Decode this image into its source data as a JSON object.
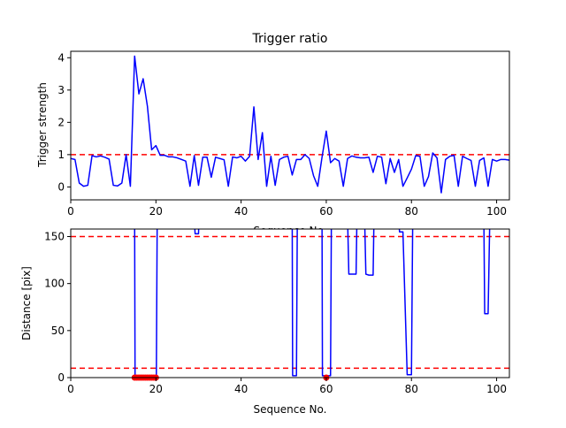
{
  "chart_data": [
    {
      "type": "line",
      "title": "Trigger ratio",
      "xlabel": "Sequence No.",
      "ylabel": "Trigger strength",
      "xlim": [
        0,
        103
      ],
      "ylim": [
        -0.4,
        4.2
      ],
      "xticks": [
        0,
        20,
        40,
        60,
        80,
        100
      ],
      "yticks": [
        0,
        1,
        2,
        3,
        4
      ],
      "grid": false,
      "line_color": "#0000ff",
      "threshold_color": "#ff0000",
      "thresholds": [
        1.0
      ],
      "x": [
        0,
        1,
        2,
        3,
        4,
        5,
        6,
        7,
        8,
        9,
        10,
        11,
        12,
        13,
        14,
        15,
        16,
        17,
        18,
        19,
        20,
        21,
        22,
        23,
        24,
        25,
        26,
        27,
        28,
        29,
        30,
        31,
        32,
        33,
        34,
        35,
        36,
        37,
        38,
        39,
        40,
        41,
        42,
        43,
        44,
        45,
        46,
        47,
        48,
        49,
        50,
        51,
        52,
        53,
        54,
        55,
        56,
        57,
        58,
        59,
        60,
        61,
        62,
        63,
        64,
        65,
        66,
        67,
        68,
        69,
        70,
        71,
        72,
        73,
        74,
        75,
        76,
        77,
        78,
        79,
        80,
        81,
        82,
        83,
        84,
        85,
        86,
        87,
        88,
        89,
        90,
        91,
        92,
        93,
        94,
        95,
        96,
        97,
        98,
        99,
        100,
        101,
        102,
        103
      ],
      "y": [
        0.88,
        0.85,
        0.12,
        0.02,
        0.05,
        0.97,
        0.93,
        0.96,
        0.92,
        0.86,
        0.05,
        0.03,
        0.12,
        1.0,
        0.02,
        4.05,
        2.88,
        3.35,
        2.5,
        1.15,
        1.28,
        0.98,
        0.98,
        0.93,
        0.93,
        0.9,
        0.85,
        0.8,
        0.02,
        0.97,
        0.05,
        0.92,
        0.92,
        0.3,
        0.92,
        0.88,
        0.84,
        0.02,
        0.93,
        0.9,
        0.95,
        0.8,
        0.95,
        2.48,
        0.85,
        1.68,
        0.02,
        0.95,
        0.05,
        0.85,
        0.92,
        0.95,
        0.37,
        0.85,
        0.85,
        1.0,
        0.88,
        0.35,
        0.02,
        0.92,
        1.73,
        0.75,
        0.88,
        0.8,
        0.02,
        0.88,
        0.96,
        0.92,
        0.9,
        0.9,
        0.92,
        0.45,
        0.95,
        0.92,
        0.1,
        0.88,
        0.45,
        0.85,
        0.02,
        0.28,
        0.55,
        0.97,
        0.95,
        0.02,
        0.32,
        1.05,
        0.9,
        -0.18,
        0.85,
        0.95,
        0.98,
        0.02,
        0.95,
        0.88,
        0.82,
        0.02,
        0.82,
        0.9,
        0.02,
        0.85,
        0.8,
        0.85,
        0.85,
        0.83
      ]
    },
    {
      "type": "line",
      "title": "",
      "xlabel": "Sequence No.",
      "ylabel": "Distance [pix]",
      "xlim": [
        0,
        103
      ],
      "ylim": [
        0,
        158
      ],
      "xticks": [
        0,
        20,
        40,
        60,
        80,
        100
      ],
      "yticks": [
        0,
        50,
        100,
        150
      ],
      "grid": false,
      "line_color": "#0000ff",
      "threshold_color": "#ff0000",
      "thresholds": [
        150,
        10
      ],
      "x": [
        15,
        15.1,
        15.2,
        16,
        17,
        18,
        19,
        20,
        20.1,
        20.3,
        29,
        29.2,
        30,
        30.1,
        52,
        52.1,
        53,
        53.2,
        59,
        59.1,
        60,
        61,
        61.2,
        65,
        65.3,
        66,
        67,
        67.2,
        69,
        69.3,
        70,
        71,
        71.2,
        77,
        77.2,
        78,
        79,
        79.2,
        80,
        80.3,
        97,
        97.2,
        98,
        98.4
      ],
      "y": [
        170,
        2,
        2,
        2,
        2,
        2,
        2,
        2,
        2,
        170,
        170,
        153,
        153,
        170,
        170,
        2,
        2,
        170,
        170,
        2,
        2,
        2,
        170,
        170,
        110,
        110,
        110,
        170,
        170,
        110,
        109,
        109,
        170,
        170,
        155,
        155,
        3,
        3,
        3,
        170,
        170,
        68,
        68,
        170
      ],
      "markers": {
        "color": "#ff0000",
        "x": [
          15,
          15.5,
          16,
          16.5,
          17,
          17.5,
          18,
          18.5,
          19,
          19.5,
          20,
          60
        ],
        "y": [
          0,
          0,
          0,
          0,
          0,
          0,
          0,
          0,
          0,
          0,
          0,
          0
        ]
      }
    }
  ]
}
